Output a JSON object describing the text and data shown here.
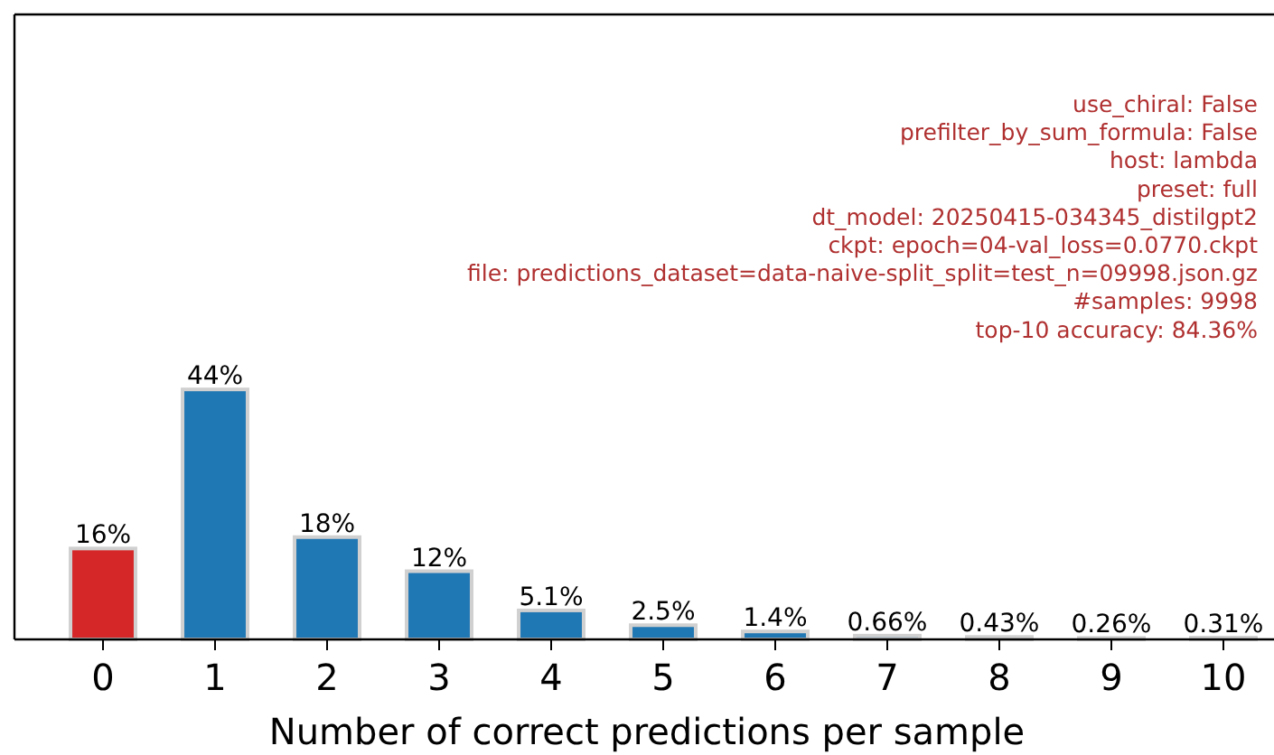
{
  "chart_data": {
    "type": "bar",
    "xlabel": "Number of correct predictions per sample",
    "categories": [
      "0",
      "1",
      "2",
      "3",
      "4",
      "5",
      "6",
      "7",
      "8",
      "9",
      "10"
    ],
    "values": [
      16,
      44,
      18,
      12,
      5.1,
      2.5,
      1.4,
      0.66,
      0.43,
      0.26,
      0.31
    ],
    "value_labels": [
      "16%",
      "44%",
      "18%",
      "12%",
      "5.1%",
      "2.5%",
      "1.4%",
      "0.66%",
      "0.43%",
      "0.26%",
      "0.31%"
    ],
    "colors": [
      "#d62728",
      "#1f77b4",
      "#1f77b4",
      "#1f77b4",
      "#1f77b4",
      "#1f77b4",
      "#1f77b4",
      "#1f77b4",
      "#1f77b4",
      "#1f77b4",
      "#1f77b4"
    ],
    "annotations": [
      "use_chiral: False",
      "prefilter_by_sum_formula: False",
      "host: lambda",
      "preset: full",
      "dt_model: 20250415-034345_distilgpt2",
      "ckpt: epoch=04-val_loss=0.0770.ckpt",
      "file: predictions_dataset=data-naive-split_split=test_n=09998.json.gz",
      "#samples: 9998",
      "top-10 accuracy: 84.36%"
    ],
    "tick_labels": "x"
  }
}
